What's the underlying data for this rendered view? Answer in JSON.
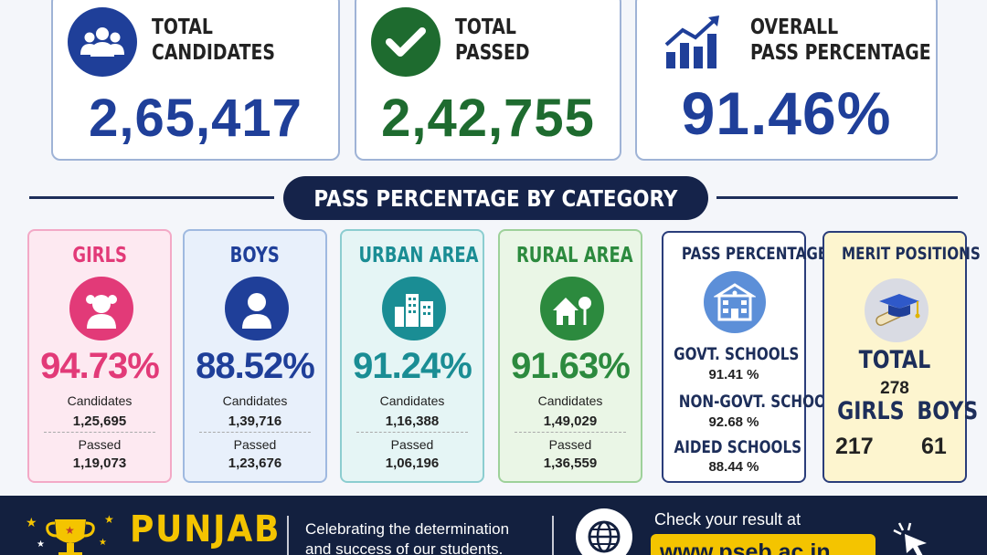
{
  "stats": {
    "total_candidates": {
      "label_line1": "TOTAL",
      "label_line2": "CANDIDATES",
      "value": "2,65,417",
      "icon": "users-icon",
      "color": "#1f3f99"
    },
    "total_passed": {
      "label_line1": "TOTAL",
      "label_line2": "PASSED",
      "value": "2,42,755",
      "icon": "checkmark-icon",
      "color": "#1e6b2f"
    },
    "overall_pass": {
      "label_line1": "OVERALL",
      "label_line2": "PASS PERCENTAGE",
      "value": "91.46%",
      "icon": "bar-chart-up-icon",
      "color": "#1f3f99"
    }
  },
  "banner": {
    "title": "PASS PERCENTAGE BY CATEGORY"
  },
  "categories": [
    {
      "title": "GIRLS",
      "icon": "girl-icon",
      "pct": "94.73%",
      "candidates_label": "Candidates",
      "candidates": "1,25,695",
      "passed_label": "Passed",
      "passed": "1,19,073",
      "color": "#e23a78"
    },
    {
      "title": "BOYS",
      "icon": "boy-icon",
      "pct": "88.52%",
      "candidates_label": "Candidates",
      "candidates": "1,39,716",
      "passed_label": "Passed",
      "passed": "1,23,676",
      "color": "#1f3f99"
    },
    {
      "title": "URBAN AREA",
      "icon": "city-buildings-icon",
      "pct": "91.24%",
      "candidates_label": "Candidates",
      "candidates": "1,16,388",
      "passed_label": "Passed",
      "passed": "1,06,196",
      "color": "#1a8d94"
    },
    {
      "title": "RURAL AREA",
      "icon": "village-house-icon",
      "pct": "91.63%",
      "candidates_label": "Candidates",
      "candidates": "1,49,029",
      "passed_label": "Passed",
      "passed": "1,36,559",
      "color": "#2c8a3e"
    }
  ],
  "schools": {
    "title": "PASS PERCENTAGE",
    "icon": "school-building-icon",
    "items": [
      {
        "name": "GOVT. SCHOOLS",
        "value": "91.41 %"
      },
      {
        "name": "NON-GOVT. SCHOOLS",
        "value": "92.68 %"
      },
      {
        "name": "AIDED SCHOOLS",
        "value": "88.44 %"
      }
    ]
  },
  "merit": {
    "title": "MERIT POSITIONS",
    "icon": "graduation-cap-diploma-icon",
    "total_label": "TOTAL",
    "total": "278",
    "girls_label": "GIRLS",
    "girls": "217",
    "boys_label": "BOYS",
    "boys": "61"
  },
  "footer": {
    "brand": "PUNJAB",
    "slogan_line1": "Celebrating the determination",
    "slogan_line2": "and success of our students.",
    "check_label": "Check your result at",
    "url": "www.pseb.ac.in",
    "icons": [
      "trophy-icon",
      "globe-icon",
      "cursor-click-icon"
    ]
  }
}
